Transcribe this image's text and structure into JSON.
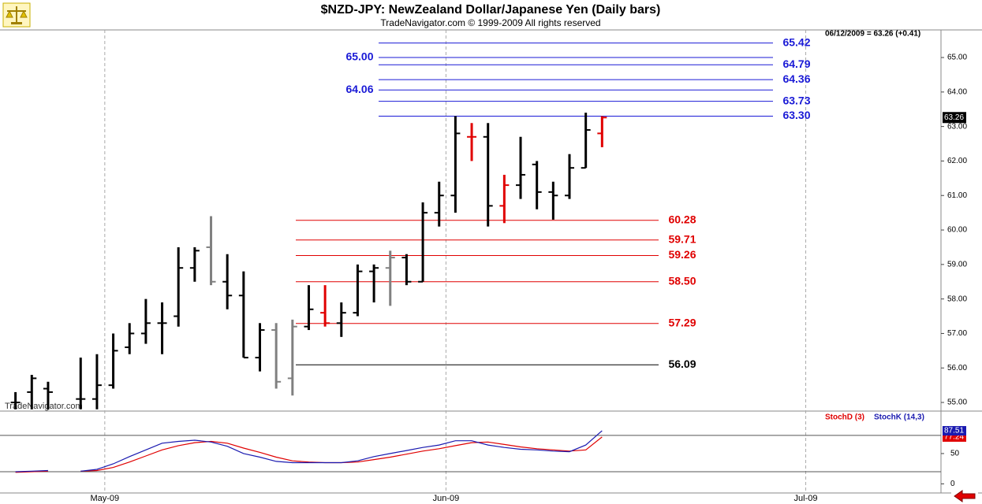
{
  "chart_data": [
    {
      "type": "ohlc",
      "title": "$NZD-JPY:  NewZealand Dollar/Japanese Yen  (Daily bars)",
      "subtitle": "TradeNavigator.com © 1999-2009 All rights reserved",
      "info": "06/12/2009 = 63.26 (+0.41)",
      "watermark": "TradeNavigator.com",
      "categories": [
        null,
        null,
        null,
        null,
        null,
        null,
        null,
        null,
        null,
        null,
        null,
        null,
        null,
        null,
        null,
        null,
        null,
        null,
        null,
        null,
        null,
        null,
        null,
        null,
        null,
        null,
        null,
        null,
        null,
        null,
        null,
        null,
        null,
        null,
        null,
        null,
        null
      ],
      "open": [
        55.0,
        55.3,
        55.4,
        null,
        55.1,
        55.1,
        55.5,
        56.6,
        57.0,
        57.3,
        57.5,
        58.9,
        59.5,
        58.5,
        58.1,
        56.3,
        57.1,
        55.7,
        57.2,
        57.6,
        57.3,
        57.6,
        58.8,
        58.9,
        59.2,
        58.5,
        60.5,
        61.0,
        62.7,
        62.7,
        60.7,
        61.3,
        61.9,
        61.1,
        61.0,
        61.8,
        62.8
      ],
      "high": [
        55.3,
        55.8,
        55.6,
        null,
        56.3,
        56.4,
        57.0,
        57.3,
        58.0,
        57.9,
        59.5,
        59.5,
        60.4,
        59.3,
        58.8,
        57.3,
        57.3,
        57.4,
        58.4,
        58.4,
        57.9,
        59.0,
        59.0,
        59.4,
        59.3,
        60.8,
        61.4,
        63.3,
        63.1,
        63.1,
        61.6,
        62.7,
        62.0,
        61.4,
        62.2,
        63.4,
        63.3
      ],
      "low": [
        54.8,
        54.8,
        54.8,
        null,
        54.8,
        54.8,
        55.4,
        56.4,
        56.7,
        56.4,
        57.2,
        58.5,
        58.4,
        57.7,
        56.3,
        55.9,
        55.4,
        55.2,
        57.1,
        57.2,
        56.9,
        57.5,
        57.9,
        57.8,
        58.4,
        58.5,
        60.1,
        60.5,
        62.0,
        60.1,
        60.2,
        60.9,
        60.6,
        60.3,
        60.9,
        61.8,
        62.4
      ],
      "close": [
        55.0,
        55.7,
        55.3,
        null,
        55.1,
        55.5,
        56.5,
        57.0,
        57.3,
        57.3,
        58.9,
        59.4,
        58.5,
        58.1,
        56.3,
        57.1,
        55.6,
        57.2,
        57.7,
        57.3,
        57.6,
        58.8,
        58.9,
        59.2,
        58.5,
        60.5,
        61.0,
        62.8,
        62.7,
        60.7,
        61.3,
        61.6,
        61.1,
        61.0,
        61.8,
        62.9,
        63.26
      ],
      "bar_colors": [
        "#000000",
        "#000000",
        "#000000",
        null,
        "#000000",
        "#000000",
        "#000000",
        "#000000",
        "#000000",
        "#000000",
        "#000000",
        "#000000",
        "#808080",
        "#000000",
        "#000000",
        "#000000",
        "#808080",
        "#808080",
        "#000000",
        "#e00000",
        "#000000",
        "#000000",
        "#000000",
        "#808080",
        "#000000",
        "#000000",
        "#000000",
        "#000000",
        "#e00000",
        "#000000",
        "#e00000",
        "#000000",
        "#000000",
        "#000000",
        "#000000",
        "#000000",
        "#e00000"
      ],
      "ylim": [
        54.75,
        65.8
      ],
      "yticks": [
        {
          "value": 55,
          "label": "55.00"
        },
        {
          "value": 56,
          "label": "56.00"
        },
        {
          "value": 57,
          "label": "57.00"
        },
        {
          "value": 58,
          "label": "58.00"
        },
        {
          "value": 59,
          "label": "59.00"
        },
        {
          "value": 60,
          "label": "60.00"
        },
        {
          "value": 61,
          "label": "61.00"
        },
        {
          "value": 62,
          "label": "62.00"
        },
        {
          "value": 63,
          "label": "63.00"
        },
        {
          "value": 64,
          "label": "64.00"
        },
        {
          "value": 65,
          "label": "65.00"
        }
      ],
      "xlim": [
        -0.95,
        56.8
      ],
      "xticks": [
        {
          "value": 5.48,
          "label": "May-09"
        },
        {
          "value": 26.42,
          "label": "Jun-09"
        },
        {
          "value": 48.5,
          "label": "Jul-09"
        }
      ],
      "level_groups": [
        {
          "color": "#1a1ad6",
          "levels": [
            {
              "value": 65.42,
              "label": "65.42"
            },
            {
              "value": 65,
              "label": "65.00"
            },
            {
              "value": 64.79,
              "label": "64.79"
            },
            {
              "value": 64.36,
              "label": "64.36"
            },
            {
              "value": 64.06,
              "label": "64.06"
            },
            {
              "value": 63.73,
              "label": "63.73"
            },
            {
              "value": 63.3,
              "label": "63.30"
            }
          ]
        },
        {
          "color": "#e00000",
          "levels": [
            {
              "value": 60.28,
              "label": "60.28"
            },
            {
              "value": 59.71,
              "label": "59.71"
            },
            {
              "value": 59.26,
              "label": "59.26"
            },
            {
              "value": 58.5,
              "label": "58.50"
            },
            {
              "value": 57.29,
              "label": "57.29"
            }
          ]
        },
        {
          "color": "#000000",
          "levels": [
            {
              "value": 56.09,
              "label": "56.09"
            }
          ]
        }
      ]
    },
    {
      "type": "line",
      "ylim": [
        -15,
        120
      ],
      "yticks": [
        0,
        50
      ],
      "hlines": [
        80,
        20
      ],
      "series": [
        {
          "name": "StochD (3)",
          "color": "#e00000",
          "values": [
            19,
            20,
            21,
            null,
            21,
            22,
            27,
            36,
            46,
            56,
            63,
            68,
            70,
            67,
            59,
            52,
            44,
            38,
            36,
            35,
            35,
            36,
            40,
            44,
            49,
            54,
            58,
            63,
            68,
            69,
            65,
            61,
            58,
            56,
            54,
            56,
            77.24
          ]
        },
        {
          "name": "StochK (14,3)",
          "color": "#1a1ab0",
          "values": [
            20,
            21,
            22,
            null,
            21,
            24,
            33,
            45,
            56,
            67,
            70,
            72,
            69,
            62,
            50,
            44,
            37,
            35,
            35,
            35,
            35,
            38,
            45,
            50,
            55,
            60,
            64,
            71,
            71,
            64,
            60,
            57,
            56,
            54,
            53,
            64,
            87.51
          ]
        }
      ]
    }
  ]
}
